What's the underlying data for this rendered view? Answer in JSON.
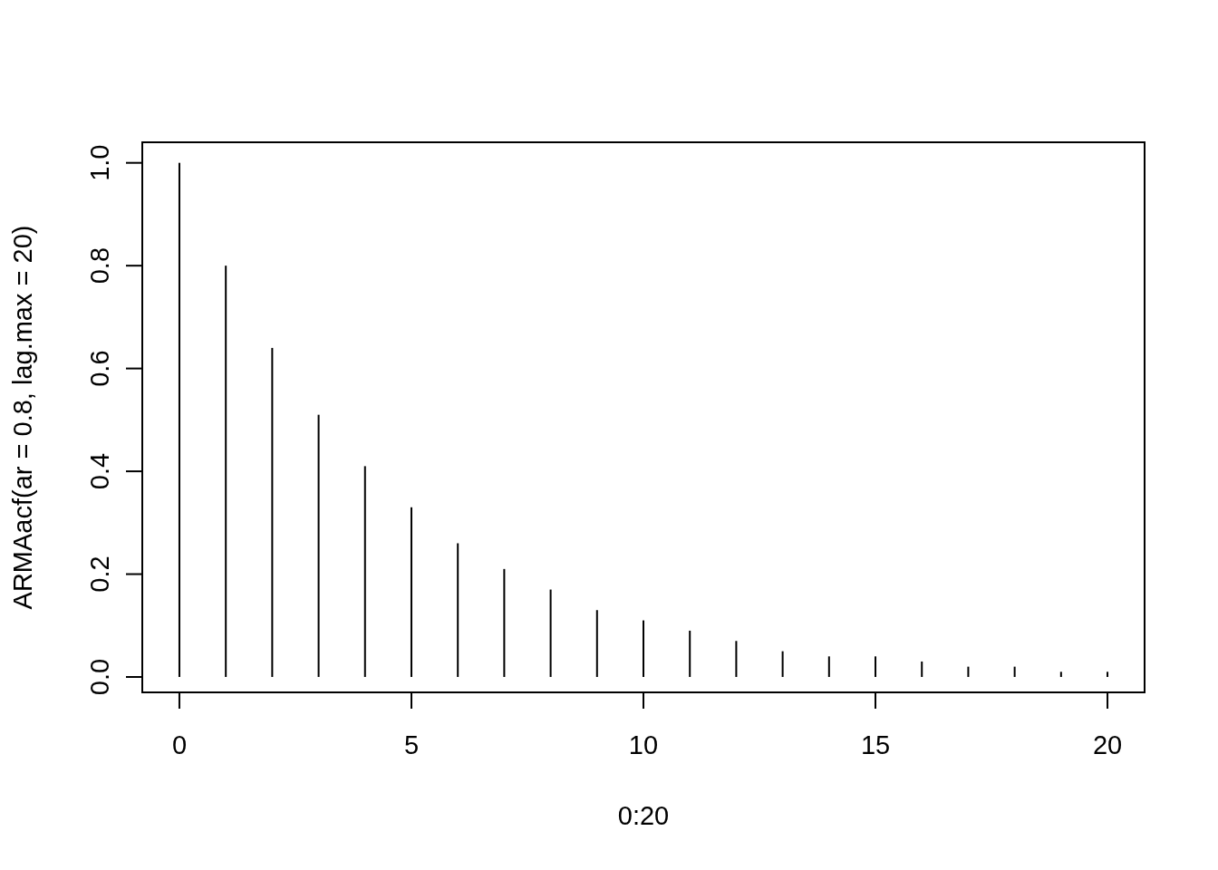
{
  "chart_data": {
    "type": "bar",
    "xlabel": "0:20",
    "ylabel": "ARMAacf(ar = 0.8, lag.max = 20)",
    "x": [
      0,
      1,
      2,
      3,
      4,
      5,
      6,
      7,
      8,
      9,
      10,
      11,
      12,
      13,
      14,
      15,
      16,
      17,
      18,
      19,
      20
    ],
    "values": [
      1,
      0.8,
      0.64,
      0.51,
      0.41,
      0.33,
      0.26,
      0.21,
      0.17,
      0.13,
      0.11,
      0.09,
      0.07,
      0.05,
      0.04,
      0.04,
      0.03,
      0.02,
      0.02,
      0.01,
      0.01
    ],
    "color": "#000000",
    "xlim": [
      -0.8,
      20.8
    ],
    "xticks": [
      0,
      5,
      10,
      15,
      20
    ],
    "ylim": [
      -0.03,
      1.04
    ],
    "yticks": [
      {
        "value": 0,
        "label": "0.0"
      },
      {
        "value": 0.2,
        "label": "0.2"
      },
      {
        "value": 0.4,
        "label": "0.4"
      },
      {
        "value": 0.6,
        "label": "0.6"
      },
      {
        "value": 0.8,
        "label": "0.8"
      },
      {
        "value": 1,
        "label": "1.0"
      }
    ]
  }
}
